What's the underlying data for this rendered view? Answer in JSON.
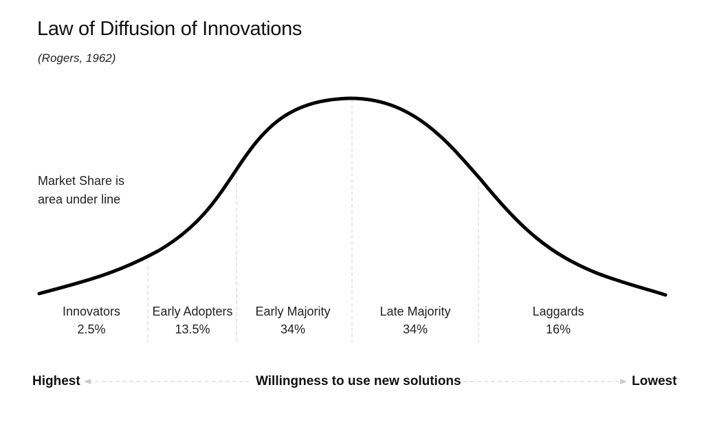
{
  "title": "Law of Diffusion of Innovations",
  "subtitle": "(Rogers, 1962)",
  "note": {
    "line1": "Market Share is",
    "line2": "area under line"
  },
  "segments": [
    {
      "name": "Innovators",
      "share": "2.5%"
    },
    {
      "name": "Early Adopters",
      "share": "13.5%"
    },
    {
      "name": "Early Majority",
      "share": "34%"
    },
    {
      "name": "Late Majority",
      "share": "34%"
    },
    {
      "name": "Laggards",
      "share": "16%"
    }
  ],
  "axis": {
    "left": "Highest",
    "center": "Willingness to use new solutions",
    "right": "Lowest"
  },
  "colors": {
    "curve": "#000000",
    "divider": "#cccccc",
    "arrow": "#cccccc"
  }
}
